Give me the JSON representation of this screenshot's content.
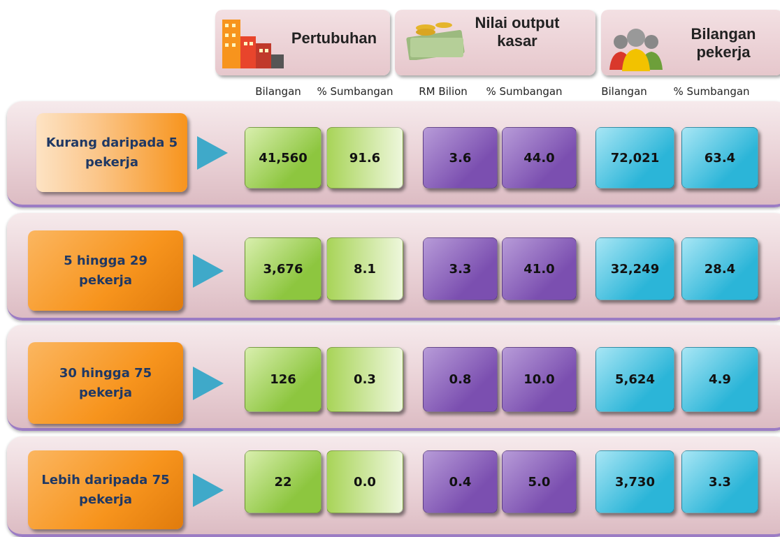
{
  "header": {
    "groups": [
      {
        "title": "Pertubuhan",
        "columns": [
          "Bilangan",
          "% Sumbangan"
        ]
      },
      {
        "title": "Nilai output kasar",
        "columns": [
          "RM Bilion",
          "% Sumbangan"
        ]
      },
      {
        "title": "Bilangan pekerja",
        "columns": [
          "Bilangan",
          "% Sumbangan"
        ]
      }
    ]
  },
  "rows": [
    {
      "label": "Kurang daripada 5 pekerja",
      "values": [
        "41,560",
        "91.6",
        "3.6",
        "44.0",
        "72,021",
        "63.4"
      ]
    },
    {
      "label": "5 hingga 29 pekerja",
      "values": [
        "3,676",
        "8.1",
        "3.3",
        "41.0",
        "32,249",
        "28.4"
      ]
    },
    {
      "label": "30  hingga 75 pekerja",
      "values": [
        "126",
        "0.3",
        "0.8",
        "10.0",
        "5,624",
        "4.9"
      ]
    },
    {
      "label": "Lebih daripada 75 pekerja",
      "values": [
        "22",
        "0.0",
        "0.4",
        "5.0",
        "3,730",
        "3.3"
      ]
    }
  ]
}
